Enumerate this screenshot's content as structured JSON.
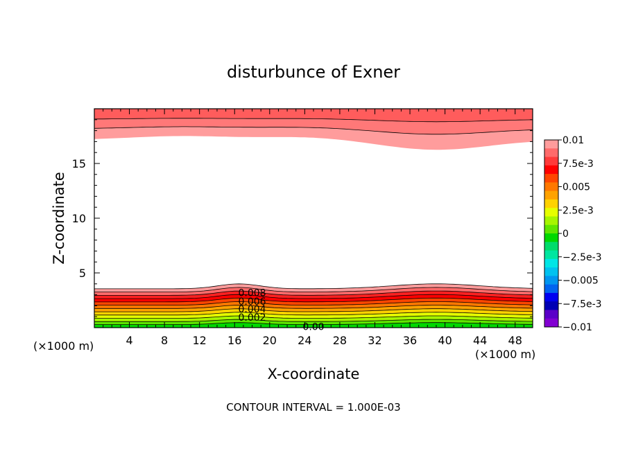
{
  "chart_data": {
    "type": "contour",
    "title": "disturbunce of Exner",
    "xlabel": "X-coordinate",
    "ylabel": "Z-coordinate",
    "x_unit_left": "(×1000 m)",
    "x_unit_right": "(×1000 m)",
    "footer": "CONTOUR INTERVAL = 1.000E-03",
    "xlim": [
      0,
      50
    ],
    "ylim": [
      0,
      20
    ],
    "x_ticks": [
      4,
      8,
      12,
      16,
      20,
      24,
      28,
      32,
      36,
      40,
      44,
      48
    ],
    "x_tick_labels": [
      "4",
      "8",
      "12",
      "16",
      "20",
      "24",
      "28",
      "32",
      "36",
      "40",
      "44",
      "48"
    ],
    "y_ticks": [
      5,
      10,
      15
    ],
    "y_tick_labels": [
      "5",
      "10",
      "15"
    ],
    "contour_interval": 0.001,
    "contour_labels": [
      {
        "text": "0.008",
        "x": 18.0,
        "z": 3.2
      },
      {
        "text": "0.006",
        "x": 18.0,
        "z": 2.4
      },
      {
        "text": "0.004",
        "x": 18.0,
        "z": 1.7
      },
      {
        "text": "0.002",
        "x": 18.0,
        "z": 0.95
      },
      {
        "text": "0.00",
        "x": 25.0,
        "z": 0.1
      }
    ],
    "colorbar": {
      "min": -0.01,
      "max": 0.01,
      "tick_labels": [
        "0.01",
        "7.5e-3",
        "0.005",
        "2.5e-3",
        "0",
        "−2.5e-3",
        "−0.005",
        "−7.5e-3",
        "−0.01"
      ],
      "tick_values": [
        0.01,
        0.0075,
        0.005,
        0.0025,
        0,
        -0.0025,
        -0.005,
        -0.0075,
        -0.01
      ],
      "colors_top_to_bottom": [
        "#ff9c9c",
        "#ff6a6a",
        "#ff3a3a",
        "#ff0000",
        "#ff4600",
        "#ff7800",
        "#ffa200",
        "#ffd200",
        "#e6ff00",
        "#a6f500",
        "#5fe600",
        "#00d800",
        "#00dc6a",
        "#00e6a0",
        "#00e6e6",
        "#00c2f0",
        "#0096f0",
        "#0064f0",
        "#0000f0",
        "#0000b4",
        "#5a00c8",
        "#8200d2"
      ]
    }
  }
}
